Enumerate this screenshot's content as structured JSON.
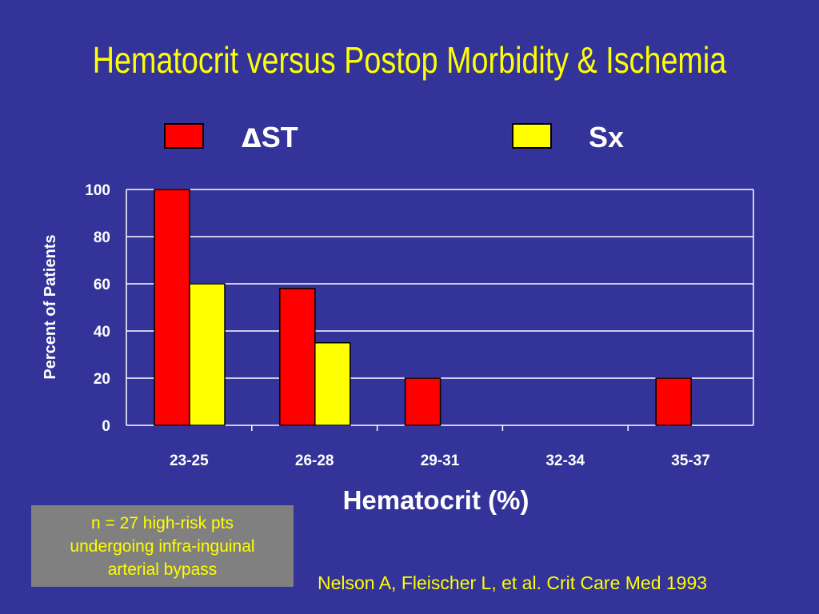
{
  "title": "Hematocrit versus Postop Morbidity & Ischemia",
  "note": [
    "n = 27 high-risk pts",
    "undergoing infra-inguinal",
    "arterial bypass"
  ],
  "citation": "Nelson A, Fleischer L, et al. Crit Care Med 1993",
  "colors": {
    "background": "#333399",
    "st": "#ff0000",
    "sx": "#ffff00",
    "title": "#ffff00"
  },
  "chart_data": {
    "type": "bar",
    "title": "",
    "xlabel": "Hematocrit (%)",
    "ylabel": "Percent of Patients",
    "ylim": [
      0,
      100
    ],
    "yticks": [
      "0",
      "20",
      "40",
      "60",
      "80",
      "100"
    ],
    "grid": true,
    "legend_position": "top",
    "categories": [
      "23-25",
      "26-28",
      "29-31",
      "32-34",
      "35-37"
    ],
    "series": [
      {
        "name": "ΔST",
        "name_symbol": "Δ",
        "name_text": "ST",
        "color": "#ff0000",
        "values": [
          100,
          58,
          20,
          0,
          20
        ]
      },
      {
        "name": "Sx",
        "color": "#ffff00",
        "values": [
          60,
          35,
          0,
          0,
          0
        ]
      }
    ]
  }
}
